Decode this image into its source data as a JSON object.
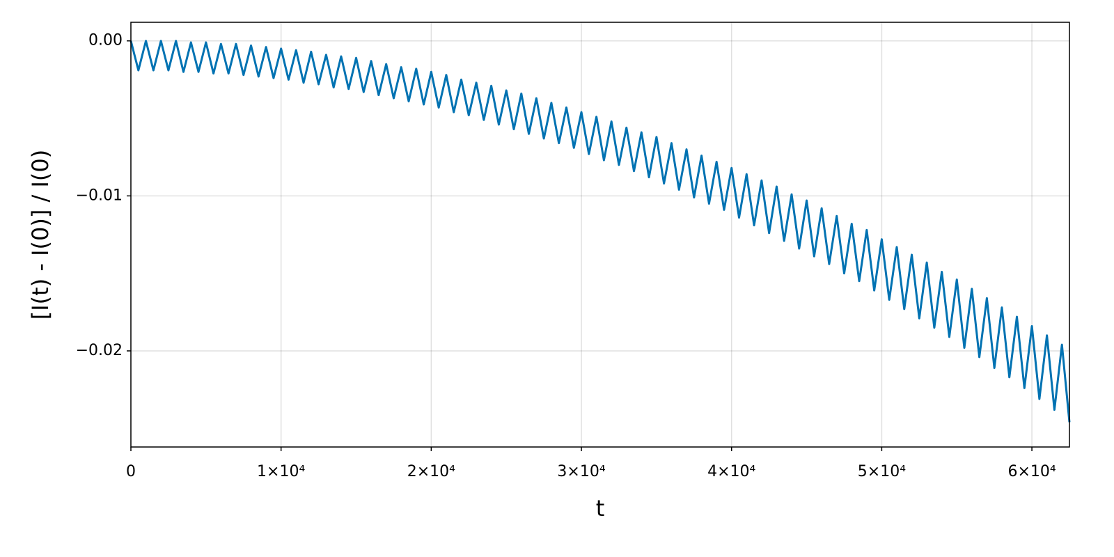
{
  "chart_data": {
    "type": "line",
    "xlabel": "t",
    "ylabel": "[I(t) - I(0)] / I(0)",
    "x": [
      0,
      500,
      1000,
      1500,
      2000,
      2500,
      3000,
      3500,
      4000,
      4500,
      5000,
      5500,
      6000,
      6500,
      7000,
      7500,
      8000,
      8500,
      9000,
      9500,
      10000,
      10500,
      11000,
      11500,
      12000,
      12500,
      13000,
      13500,
      14000,
      14500,
      15000,
      15500,
      16000,
      16500,
      17000,
      17500,
      18000,
      18500,
      19000,
      19500,
      20000,
      20500,
      21000,
      21500,
      22000,
      22500,
      23000,
      23500,
      24000,
      24500,
      25000,
      25500,
      26000,
      26500,
      27000,
      27500,
      28000,
      28500,
      29000,
      29500,
      30000,
      30500,
      31000,
      31500,
      32000,
      32500,
      33000,
      33500,
      34000,
      34500,
      35000,
      35500,
      36000,
      36500,
      37000,
      37500,
      38000,
      38500,
      39000,
      39500,
      40000,
      40500,
      41000,
      41500,
      42000,
      42500,
      43000,
      43500,
      44000,
      44500,
      45000,
      45500,
      46000,
      46500,
      47000,
      47500,
      48000,
      48500,
      49000,
      49500,
      50000,
      50500,
      51000,
      51500,
      52000,
      52500,
      53000,
      53500,
      54000,
      54500,
      55000,
      55500,
      56000,
      56500,
      57000,
      57500,
      58000,
      58500,
      59000,
      59500,
      60000,
      60500,
      61000,
      61500,
      62000,
      62500
    ],
    "series": [
      {
        "color": "#0072b2",
        "values": [
          0,
          -0.0019,
          0,
          -0.0019,
          0,
          -0.0019,
          0,
          -0.002,
          -0.0001,
          -0.002,
          -0.0001,
          -0.0021,
          -0.0002,
          -0.0021,
          -0.0002,
          -0.0022,
          -0.0003,
          -0.0023,
          -0.0004,
          -0.0024,
          -0.0005,
          -0.0025,
          -0.0006,
          -0.0027,
          -0.0007,
          -0.0028,
          -0.0009,
          -0.003,
          -0.001,
          -0.0031,
          -0.0011,
          -0.0033,
          -0.0013,
          -0.0035,
          -0.0015,
          -0.0037,
          -0.0017,
          -0.0039,
          -0.0018,
          -0.0041,
          -0.002,
          -0.0043,
          -0.0022,
          -0.0046,
          -0.0025,
          -0.0048,
          -0.0027,
          -0.0051,
          -0.0029,
          -0.0054,
          -0.0032,
          -0.0057,
          -0.0034,
          -0.006,
          -0.0037,
          -0.0063,
          -0.004,
          -0.0066,
          -0.0043,
          -0.0069,
          -0.0046,
          -0.0073,
          -0.0049,
          -0.0077,
          -0.0052,
          -0.008,
          -0.0056,
          -0.0084,
          -0.0059,
          -0.0088,
          -0.0062,
          -0.0092,
          -0.0066,
          -0.0096,
          -0.007,
          -0.0101,
          -0.0074,
          -0.0105,
          -0.0078,
          -0.0109,
          -0.0082,
          -0.0114,
          -0.0086,
          -0.0119,
          -0.009,
          -0.0124,
          -0.0094,
          -0.0129,
          -0.0099,
          -0.0134,
          -0.0103,
          -0.0139,
          -0.0108,
          -0.0144,
          -0.0113,
          -0.015,
          -0.0118,
          -0.0155,
          -0.0122,
          -0.0161,
          -0.0128,
          -0.0167,
          -0.0133,
          -0.0173,
          -0.0138,
          -0.0179,
          -0.0143,
          -0.0185,
          -0.0149,
          -0.0191,
          -0.0154,
          -0.0198,
          -0.016,
          -0.0204,
          -0.0166,
          -0.0211,
          -0.0172,
          -0.0217,
          -0.0178,
          -0.0224,
          -0.0184,
          -0.0231,
          -0.019,
          -0.0238,
          -0.0196,
          -0.0246
        ]
      }
    ],
    "xlim": [
      0,
      62500
    ],
    "ylim": [
      -0.0262,
      0.0012
    ],
    "xticks": [
      0,
      {
        "value": 10000,
        "label": "1×10⁴"
      },
      {
        "value": 20000,
        "label": "2×10⁴"
      },
      {
        "value": 30000,
        "label": "3×10⁴"
      },
      {
        "value": 40000,
        "label": "4×10⁴"
      },
      {
        "value": 50000,
        "label": "5×10⁴"
      },
      {
        "value": 60000,
        "label": "6×10⁴"
      }
    ],
    "yticks": [
      {
        "value": 0,
        "label": "0.00"
      },
      {
        "value": -0.01,
        "label": "−0.01"
      },
      {
        "value": -0.02,
        "label": "−0.02"
      }
    ],
    "grid": true
  }
}
